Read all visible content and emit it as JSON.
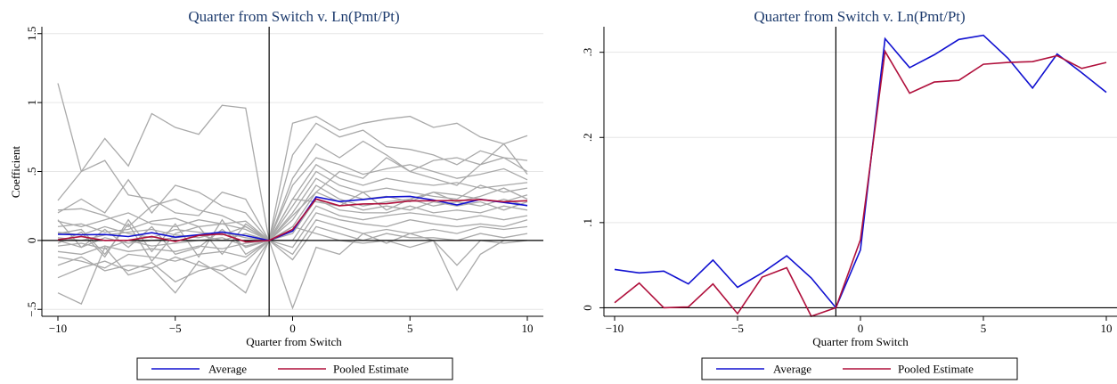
{
  "colors": {
    "average": "#1010d0",
    "pooled": "#b0103c",
    "individual": "#a9a9a9",
    "grid": "#e6e6e6",
    "axis": "#000000"
  },
  "chart_data": [
    {
      "type": "line",
      "title": "Quarter from Switch v. Ln(Pmt/Pt)",
      "xlabel": "Quarter from Switch",
      "ylabel": "Coefficient",
      "xlim": [
        -10,
        10
      ],
      "ylim": [
        -0.55,
        1.55
      ],
      "xticks": [
        -10,
        -5,
        0,
        5,
        10
      ],
      "xtick_labels": [
        "−10",
        "−5",
        "0",
        "5",
        "10"
      ],
      "yticks": [
        -0.5,
        0,
        0.5,
        1,
        1.5
      ],
      "ytick_labels": [
        "−.5",
        "0",
        ".5",
        "1",
        "1.5"
      ],
      "ytick_rotated": true,
      "grid": true,
      "vline_x": -1,
      "hline_y": 0,
      "legend_position": "bottom",
      "legend": [
        "Average",
        "Pooled Estimate"
      ],
      "x": [
        -10,
        -9,
        -8,
        -7,
        -6,
        -5,
        -4,
        -3,
        -2,
        -1,
        0,
        1,
        2,
        3,
        4,
        5,
        6,
        7,
        8,
        9,
        10
      ],
      "series": [
        {
          "name": "Average",
          "color_key": "average",
          "values": [
            0.045,
            0.041,
            0.043,
            0.028,
            0.056,
            0.024,
            0.041,
            0.061,
            0.035,
            0.0,
            0.068,
            0.316,
            0.282,
            0.297,
            0.315,
            0.32,
            0.293,
            0.258,
            0.298,
            0.276,
            0.253
          ]
        },
        {
          "name": "Pooled Estimate",
          "color_key": "pooled",
          "values": [
            0.006,
            0.029,
            0.0,
            0.001,
            0.028,
            -0.007,
            0.036,
            0.047,
            -0.01,
            0.0,
            0.08,
            0.301,
            0.252,
            0.265,
            0.267,
            0.286,
            0.288,
            0.289,
            0.296,
            0.281,
            0.288
          ]
        }
      ],
      "individual_series": [
        [
          1.14,
          0.5,
          0.58,
          0.33,
          0.3,
          0.2,
          0.18,
          0.35,
          0.3,
          0.0,
          0.85,
          0.9,
          0.8,
          0.85,
          0.88,
          0.9,
          0.82,
          0.85,
          0.75,
          0.7,
          0.76
        ],
        [
          0.29,
          0.5,
          0.74,
          0.54,
          0.92,
          0.82,
          0.77,
          0.98,
          0.96,
          0.0,
          0.62,
          0.85,
          0.75,
          0.8,
          0.68,
          0.66,
          0.62,
          0.55,
          0.65,
          0.6,
          0.58
        ],
        [
          0.2,
          0.3,
          0.2,
          0.44,
          0.2,
          0.4,
          0.35,
          0.25,
          0.2,
          0.0,
          0.45,
          0.7,
          0.6,
          0.72,
          0.62,
          0.5,
          0.58,
          0.6,
          0.55,
          0.6,
          0.5
        ],
        [
          0.22,
          0.23,
          0.18,
          0.1,
          0.25,
          0.3,
          0.22,
          0.18,
          0.1,
          0.0,
          0.4,
          0.6,
          0.55,
          0.48,
          0.52,
          0.55,
          0.5,
          0.45,
          0.48,
          0.52,
          0.44
        ],
        [
          0.14,
          0.1,
          0.15,
          0.2,
          0.12,
          0.1,
          0.15,
          0.12,
          0.08,
          0.0,
          0.3,
          0.55,
          0.45,
          0.4,
          0.45,
          0.42,
          0.4,
          0.42,
          0.38,
          0.4,
          0.42
        ],
        [
          0.1,
          0.12,
          0.06,
          0.08,
          0.14,
          0.16,
          0.1,
          0.12,
          0.14,
          0.0,
          0.25,
          0.5,
          0.4,
          0.35,
          0.38,
          0.35,
          0.32,
          0.3,
          0.4,
          0.35,
          0.38
        ],
        [
          0.06,
          0.04,
          0.1,
          0.05,
          0.02,
          0.08,
          0.06,
          0.04,
          0.1,
          0.0,
          0.2,
          0.45,
          0.35,
          0.3,
          0.32,
          0.28,
          0.35,
          0.33,
          0.3,
          0.28,
          0.33
        ],
        [
          0.02,
          0.0,
          0.04,
          0.06,
          0.08,
          0.04,
          0.02,
          0.06,
          0.02,
          0.0,
          0.15,
          0.4,
          0.3,
          0.25,
          0.28,
          0.3,
          0.25,
          0.28,
          0.25,
          0.3,
          0.25
        ],
        [
          0.0,
          -0.05,
          0.02,
          -0.02,
          0.0,
          0.02,
          0.04,
          0.0,
          0.05,
          0.0,
          0.1,
          0.35,
          0.28,
          0.22,
          0.25,
          0.22,
          0.28,
          0.25,
          0.28,
          0.22,
          0.28
        ],
        [
          -0.04,
          -0.02,
          -0.06,
          0.0,
          -0.04,
          -0.02,
          0.0,
          0.02,
          -0.04,
          0.0,
          0.05,
          0.3,
          0.22,
          0.2,
          0.2,
          0.25,
          0.2,
          0.22,
          0.2,
          0.25,
          0.22
        ],
        [
          -0.08,
          -0.1,
          -0.04,
          -0.08,
          -0.06,
          -0.08,
          -0.04,
          -0.06,
          -0.02,
          0.0,
          0.0,
          0.25,
          0.18,
          0.15,
          0.18,
          0.2,
          0.18,
          0.15,
          0.18,
          0.15,
          0.18
        ],
        [
          -0.12,
          -0.15,
          -0.2,
          -0.1,
          -0.12,
          -0.15,
          -0.1,
          -0.08,
          -0.12,
          0.0,
          -0.05,
          0.2,
          0.15,
          0.12,
          0.1,
          0.15,
          0.12,
          0.1,
          0.12,
          0.1,
          0.15
        ],
        [
          -0.18,
          -0.12,
          -0.22,
          -0.18,
          -0.2,
          -0.12,
          -0.18,
          -0.22,
          -0.15,
          0.0,
          -0.1,
          0.15,
          0.1,
          0.05,
          0.08,
          0.05,
          0.08,
          0.05,
          0.1,
          0.08,
          0.1
        ],
        [
          -0.27,
          -0.2,
          -0.15,
          -0.22,
          -0.16,
          -0.3,
          -0.22,
          -0.18,
          -0.25,
          0.0,
          -0.14,
          0.1,
          0.05,
          0.0,
          0.05,
          0.02,
          0.02,
          0.0,
          0.05,
          0.02,
          0.05
        ],
        [
          -0.38,
          -0.46,
          -0.05,
          -0.25,
          -0.2,
          -0.38,
          -0.15,
          -0.25,
          -0.38,
          0.0,
          -0.49,
          -0.05,
          -0.1,
          0.05,
          -0.02,
          0.05,
          0.0,
          -0.18,
          0.0,
          -0.02,
          0.0
        ],
        [
          0.05,
          0.08,
          -0.1,
          0.12,
          -0.15,
          0.05,
          0.1,
          -0.1,
          0.12,
          0.0,
          0.1,
          0.05,
          0.0,
          -0.02,
          0.0,
          -0.05,
          0.0,
          -0.36,
          -0.1,
          0.0,
          0.0
        ],
        [
          0.15,
          -0.05,
          0.08,
          -0.05,
          0.1,
          -0.1,
          -0.05,
          0.08,
          -0.05,
          0.0,
          0.18,
          0.35,
          0.5,
          0.45,
          0.6,
          0.5,
          0.45,
          0.4,
          0.55,
          0.7,
          0.48
        ],
        [
          -0.02,
          0.06,
          -0.12,
          0.15,
          -0.08,
          0.12,
          -0.12,
          0.15,
          -0.1,
          0.0,
          0.3,
          0.28,
          0.25,
          0.35,
          0.22,
          0.3,
          0.35,
          0.28,
          0.32,
          0.38,
          0.3
        ]
      ]
    },
    {
      "type": "line",
      "title": "Quarter from Switch v. Ln(Pmt/Pt)",
      "xlabel": "Quarter from Switch",
      "ylabel": "",
      "xlim": [
        -10,
        10
      ],
      "ylim": [
        -0.01,
        0.33
      ],
      "xticks": [
        -10,
        -5,
        0,
        5,
        10
      ],
      "xtick_labels": [
        "−10",
        "−5",
        "0",
        "5",
        "10"
      ],
      "yticks": [
        0,
        0.1,
        0.2,
        0.3
      ],
      "ytick_labels": [
        "0",
        ".1",
        ".2",
        ".3"
      ],
      "ytick_rotated": true,
      "grid": true,
      "vline_x": -1,
      "hline_y": 0,
      "legend_position": "bottom",
      "legend": [
        "Average",
        "Pooled Estimate"
      ],
      "x": [
        -10,
        -9,
        -8,
        -7,
        -6,
        -5,
        -4,
        -3,
        -2,
        -1,
        0,
        1,
        2,
        3,
        4,
        5,
        6,
        7,
        8,
        9,
        10
      ],
      "series": [
        {
          "name": "Average",
          "color_key": "average",
          "values": [
            0.045,
            0.041,
            0.043,
            0.028,
            0.056,
            0.024,
            0.041,
            0.061,
            0.035,
            0.0,
            0.068,
            0.316,
            0.282,
            0.297,
            0.315,
            0.32,
            0.293,
            0.258,
            0.298,
            0.276,
            0.253
          ]
        },
        {
          "name": "Pooled Estimate",
          "color_key": "pooled",
          "values": [
            0.006,
            0.029,
            0.0,
            0.001,
            0.028,
            -0.007,
            0.036,
            0.047,
            -0.01,
            0.0,
            0.08,
            0.301,
            0.252,
            0.265,
            0.267,
            0.286,
            0.288,
            0.289,
            0.296,
            0.281,
            0.288
          ]
        }
      ],
      "individual_series": []
    }
  ]
}
